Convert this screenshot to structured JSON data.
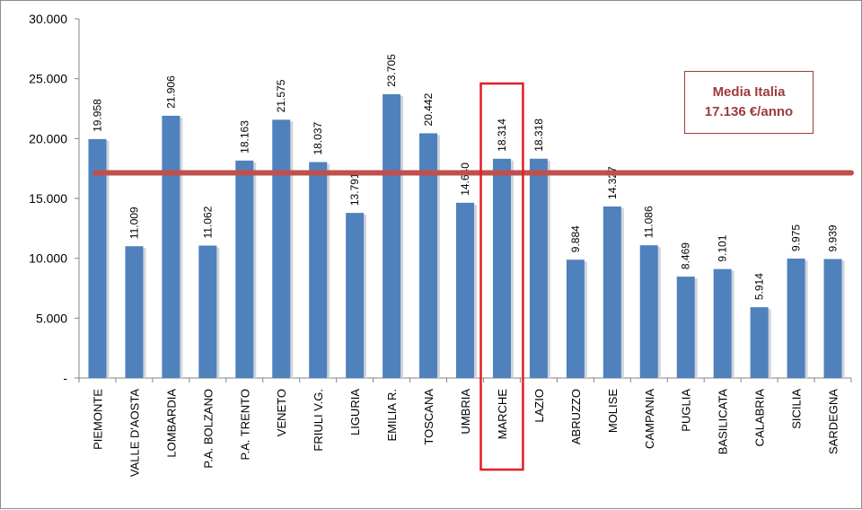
{
  "chart_data": {
    "type": "bar",
    "title": "",
    "xlabel": "",
    "ylabel": "",
    "ylim": [
      0,
      30000
    ],
    "yticks": [
      {
        "value": 0,
        "label": "-"
      },
      {
        "value": 5000,
        "label": "5.000"
      },
      {
        "value": 10000,
        "label": "10.000"
      },
      {
        "value": 15000,
        "label": "15.000"
      },
      {
        "value": 20000,
        "label": "20.000"
      },
      {
        "value": 25000,
        "label": "25.000"
      },
      {
        "value": 30000,
        "label": "30.000"
      }
    ],
    "categories": [
      "PIEMONTE",
      "VALLE D'AOSTA",
      "LOMBARDIA",
      "P.A. BOLZANO",
      "P.A. TRENTO",
      "VENETO",
      "FRIULI V.G.",
      "LIGURIA",
      "EMILIA R.",
      "TOSCANA",
      "UMBRIA",
      "MARCHE",
      "LAZIO",
      "ABRUZZO",
      "MOLISE",
      "CAMPANIA",
      "PUGLIA",
      "BASILICATA",
      "CALABRIA",
      "SICILIA",
      "SARDEGNA"
    ],
    "values": [
      19958,
      11009,
      21906,
      11062,
      18163,
      21575,
      18037,
      13791,
      23705,
      20442,
      14640,
      18314,
      18318,
      9884,
      14327,
      11086,
      8469,
      9101,
      5914,
      9975,
      9939
    ],
    "value_labels": [
      "19.958",
      "11.009",
      "21.906",
      "11.062",
      "18.163",
      "21.575",
      "18.037",
      "13.791",
      "23.705",
      "20.442",
      "14.640",
      "18.314",
      "18.318",
      "9.884",
      "14.327",
      "11.086",
      "8.469",
      "9.101",
      "5.914",
      "9.975",
      "9.939"
    ],
    "bar_color": "#4f81bd",
    "highlighted_category": "MARCHE",
    "highlight_color": "#e31e24",
    "reference_line": {
      "value": 17136,
      "color": "#c0504d",
      "label_line1": "Media Italia",
      "label_line2": "17.136 €/anno",
      "label_color": "#9e3b3b"
    },
    "grid": false,
    "legend": "none"
  }
}
